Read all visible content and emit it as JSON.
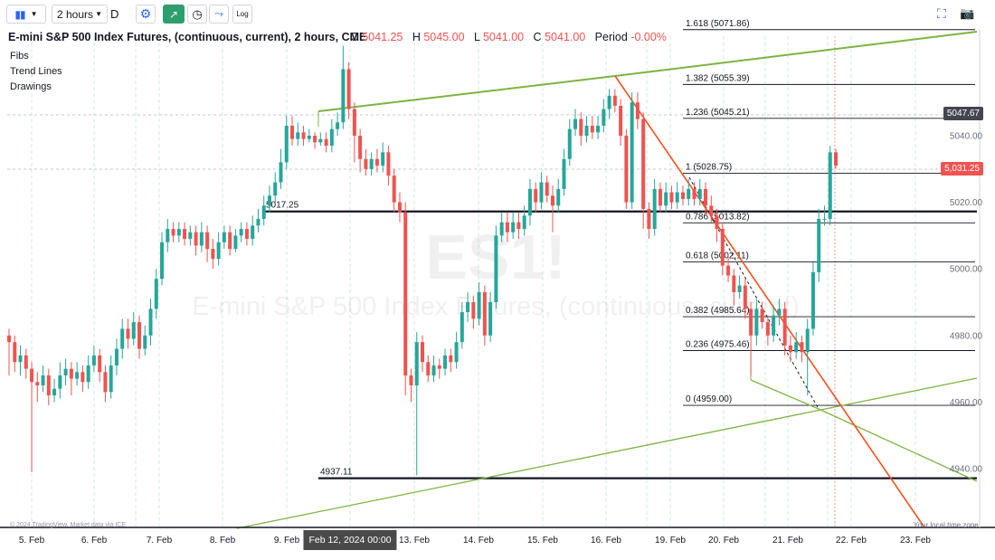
{
  "toolbar": {
    "interval": "2 hours",
    "style_letter": "D",
    "log_label": "Log"
  },
  "header": {
    "title": "E-mini S&P 500 Index Futures, (continuous, current), 2 hours, CME",
    "open_label": "O",
    "open_value": "5041.25",
    "high_label": "H",
    "high_value": "5045.00",
    "low_label": "L",
    "low_value": "5041.00",
    "close_label": "C",
    "close_value": "5041.00",
    "period_label": "Period",
    "period_value": "-0.00%"
  },
  "legend_items": [
    "Fibs",
    "Trend Lines",
    "Drawings"
  ],
  "watermark": {
    "symbol": "ES1!",
    "description": "E-mini S&P 500 Index Futures, (continuous, current)"
  },
  "price_tags": {
    "upper": "5047.67",
    "current": "5,031.25"
  },
  "footer": {
    "crosshair_date": "Feb 12, 2024 00:00",
    "copyright": "© 2024 TradingView. Market data via ICE",
    "timezone": "Your local time zone"
  },
  "colors": {
    "up": "#26a69a",
    "down": "#ef5350",
    "trend_green": "#7cb342",
    "trend_red": "#f4511e",
    "horizontal": "#131722"
  },
  "chart_data": {
    "type": "candlestick",
    "symbol": "ES1!",
    "timeframe": "2 hours",
    "y_ticks": [
      4940,
      4960,
      4980,
      5000,
      5020,
      5040
    ],
    "ylim": [
      4936,
      5080
    ],
    "x_ticks": [
      "5. Feb",
      "6. Feb",
      "7. Feb",
      "8. Feb",
      "9. Feb",
      "Feb 12, 2024 00:00",
      "13. Feb",
      "14. Feb",
      "15. Feb",
      "16. Feb",
      "19. Feb",
      "20. Feb",
      "21. Feb",
      "22. Feb",
      "23. Feb"
    ],
    "candles": [
      [
        4980,
        4978,
        4982,
        4968
      ],
      [
        4978,
        4972,
        4980,
        4969
      ],
      [
        4972,
        4974,
        4977,
        4968
      ],
      [
        4974,
        4970,
        4976,
        4967
      ],
      [
        4970,
        4966,
        4972,
        4939
      ],
      [
        4966,
        4965,
        4969,
        4960
      ],
      [
        4965,
        4968,
        4971,
        4963
      ],
      [
        4968,
        4962,
        4970,
        4959
      ],
      [
        4962,
        4964,
        4967,
        4960
      ],
      [
        4964,
        4968,
        4972,
        4961
      ],
      [
        4968,
        4970,
        4973,
        4965
      ],
      [
        4970,
        4967,
        4972,
        4962
      ],
      [
        4967,
        4969,
        4972,
        4965
      ],
      [
        4969,
        4966,
        4971,
        4963
      ],
      [
        4966,
        4971,
        4974,
        4964
      ],
      [
        4971,
        4974,
        4977,
        4969
      ],
      [
        4974,
        4969,
        4976,
        4966
      ],
      [
        4969,
        4963,
        4971,
        4960
      ],
      [
        4963,
        4971,
        4974,
        4961
      ],
      [
        4971,
        4976,
        4979,
        4968
      ],
      [
        4976,
        4982,
        4985,
        4973
      ],
      [
        4982,
        4979,
        4985,
        4976
      ],
      [
        4979,
        4984,
        4987,
        4977
      ],
      [
        4984,
        4976,
        4986,
        4973
      ],
      [
        4976,
        4980,
        4983,
        4974
      ],
      [
        4980,
        4988,
        4991,
        4977
      ],
      [
        4988,
        4997,
        5000,
        4985
      ],
      [
        4997,
        5008,
        5011,
        4995
      ],
      [
        5008,
        5012,
        5015,
        5005
      ],
      [
        5012,
        5010,
        5014,
        5008
      ],
      [
        5010,
        5012,
        5014,
        5008
      ],
      [
        5012,
        5009,
        5014,
        5007
      ],
      [
        5009,
        5011,
        5013,
        5007
      ],
      [
        5011,
        5007,
        5013,
        5004
      ],
      [
        5007,
        5011,
        5014,
        5005
      ],
      [
        5011,
        5006,
        5013,
        5002
      ],
      [
        5006,
        5003,
        5009,
        5000
      ],
      [
        5003,
        5008,
        5011,
        5001
      ],
      [
        5008,
        5011,
        5013,
        5006
      ],
      [
        5011,
        5006,
        5013,
        5004
      ],
      [
        5006,
        5010,
        5012,
        5005
      ],
      [
        5010,
        5012,
        5014,
        5008
      ],
      [
        5012,
        5009,
        5014,
        5007
      ],
      [
        5009,
        5013,
        5016,
        5007
      ],
      [
        5013,
        5015,
        5018,
        5011
      ],
      [
        5015,
        5019,
        5022,
        5013
      ],
      [
        5019,
        5022,
        5025,
        5017
      ],
      [
        5022,
        5026,
        5029,
        5020
      ],
      [
        5026,
        5032,
        5036,
        5024
      ],
      [
        5032,
        5043,
        5046,
        5030
      ],
      [
        5043,
        5039,
        5046,
        5037
      ],
      [
        5039,
        5041,
        5044,
        5037
      ],
      [
        5041,
        5039,
        5043,
        5037
      ],
      [
        5039,
        5040,
        5042,
        5038
      ],
      [
        5040,
        5038,
        5041,
        5036
      ],
      [
        5038,
        5039,
        5041,
        5037
      ],
      [
        5039,
        5037,
        5041,
        5035
      ],
      [
        5037,
        5042,
        5045,
        5035
      ],
      [
        5042,
        5044,
        5047,
        5040
      ],
      [
        5044,
        5060,
        5067,
        5042
      ],
      [
        5060,
        5048,
        5062,
        5045
      ],
      [
        5048,
        5040,
        5050,
        5032
      ],
      [
        5040,
        5033,
        5042,
        5029
      ],
      [
        5033,
        5030,
        5036,
        5028
      ],
      [
        5030,
        5033,
        5035,
        5028
      ],
      [
        5033,
        5031,
        5036,
        5029
      ],
      [
        5031,
        5035,
        5038,
        5029
      ],
      [
        5035,
        5028,
        5037,
        5025
      ],
      [
        5028,
        5020,
        5030,
        5017
      ],
      [
        5020,
        5017,
        5023,
        5014
      ],
      [
        5017,
        4968,
        5020,
        4962
      ],
      [
        4968,
        4965,
        4970,
        4960
      ],
      [
        4965,
        4978,
        4981,
        4938
      ],
      [
        4978,
        4972,
        4980,
        4969
      ],
      [
        4972,
        4968,
        4974,
        4966
      ],
      [
        4968,
        4971,
        4974,
        4966
      ],
      [
        4971,
        4970,
        4973,
        4967
      ],
      [
        4970,
        4974,
        4976,
        4968
      ],
      [
        4974,
        4972,
        4976,
        4969
      ],
      [
        4972,
        4978,
        4981,
        4970
      ],
      [
        4978,
        4987,
        4990,
        4976
      ],
      [
        4987,
        4990,
        4993,
        4984
      ],
      [
        4990,
        4985,
        4992,
        4982
      ],
      [
        4985,
        4993,
        4996,
        4983
      ],
      [
        4993,
        4980,
        4995,
        4977
      ],
      [
        4980,
        4990,
        4993,
        4978
      ],
      [
        4990,
        5010,
        5013,
        4988
      ],
      [
        5010,
        5014,
        5017,
        5008
      ],
      [
        5014,
        5011,
        5017,
        5008
      ],
      [
        5011,
        5014,
        5017,
        5009
      ],
      [
        5014,
        5012,
        5017,
        5009
      ],
      [
        5012,
        5016,
        5019,
        5010
      ],
      [
        5016,
        5024,
        5027,
        5013
      ],
      [
        5024,
        5020,
        5026,
        5017
      ],
      [
        5020,
        5026,
        5029,
        5018
      ],
      [
        5026,
        5022,
        5028,
        5020
      ],
      [
        5022,
        5019,
        5025,
        5011
      ],
      [
        5019,
        5024,
        5027,
        5017
      ],
      [
        5024,
        5033,
        5036,
        5022
      ],
      [
        5033,
        5042,
        5045,
        5031
      ],
      [
        5042,
        5045,
        5048,
        5040
      ],
      [
        5045,
        5040,
        5047,
        5037
      ],
      [
        5040,
        5043,
        5046,
        5038
      ],
      [
        5043,
        5041,
        5046,
        5039
      ],
      [
        5041,
        5043,
        5046,
        5039
      ],
      [
        5043,
        5048,
        5051,
        5041
      ],
      [
        5048,
        5052,
        5054,
        5045
      ],
      [
        5052,
        5049,
        5054,
        5047
      ],
      [
        5049,
        5040,
        5051,
        5037
      ],
      [
        5040,
        5020,
        5042,
        5018
      ],
      [
        5020,
        5050,
        5053,
        5018
      ],
      [
        5050,
        5045,
        5053,
        5042
      ],
      [
        5045,
        5018,
        5047,
        5012
      ],
      [
        5018,
        5012,
        5020,
        5009
      ],
      [
        5012,
        5024,
        5027,
        5010
      ],
      [
        5024,
        5019,
        5026,
        5017
      ],
      [
        5019,
        5023,
        5026,
        5017
      ],
      [
        5023,
        5020,
        5025,
        5018
      ],
      [
        5020,
        5023,
        5026,
        5018
      ],
      [
        5023,
        5021,
        5025,
        5019
      ],
      [
        5021,
        5024,
        5027,
        5019
      ],
      [
        5024,
        5021,
        5026,
        5019
      ],
      [
        5021,
        5024,
        5027,
        5019
      ],
      [
        5024,
        5019,
        5026,
        5016
      ],
      [
        5019,
        5016,
        5022,
        5014
      ],
      [
        5016,
        5012,
        5018,
        5008
      ],
      [
        5012,
        5001,
        5014,
        4998
      ],
      [
        5001,
        4998,
        5004,
        4996
      ],
      [
        4998,
        4993,
        5000,
        4989
      ],
      [
        4993,
        4995,
        4998,
        4991
      ],
      [
        4995,
        4988,
        4997,
        4985
      ],
      [
        4988,
        4980,
        4990,
        4968
      ],
      [
        4980,
        4988,
        4991,
        4977
      ],
      [
        4988,
        4984,
        4990,
        4982
      ],
      [
        4984,
        4980,
        4986,
        4977
      ],
      [
        4980,
        4986,
        4989,
        4978
      ],
      [
        4986,
        4988,
        4991,
        4983
      ],
      [
        4988,
        4977,
        4990,
        4974
      ],
      [
        4977,
        4975,
        4980,
        4972
      ],
      [
        4975,
        4978,
        4981,
        4973
      ],
      [
        4978,
        4975,
        4980,
        4972
      ],
      [
        4975,
        4982,
        4985,
        4962
      ],
      [
        4982,
        4999,
        5002,
        4980
      ],
      [
        4999,
        5015,
        5018,
        4996
      ],
      [
        5015,
        5015,
        5019,
        5013
      ],
      [
        5015,
        5035,
        5037,
        5013
      ],
      [
        5035,
        5031,
        5036,
        5030
      ]
    ]
  }
}
